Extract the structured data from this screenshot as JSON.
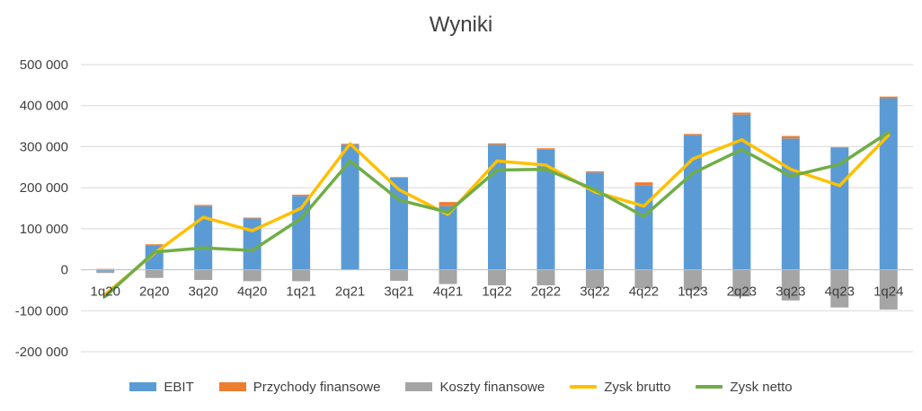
{
  "chart_data": {
    "type": "bar",
    "title": "Wyniki",
    "categories": [
      "1q20",
      "2q20",
      "3q20",
      "4q20",
      "1q21",
      "2q21",
      "3q21",
      "4q21",
      "1q22",
      "2q22",
      "3q22",
      "4q22",
      "1q23",
      "2q23",
      "3q23",
      "4q23",
      "1q24"
    ],
    "ylim": [
      -200000,
      500000
    ],
    "yticks": [
      -200000,
      -100000,
      0,
      100000,
      200000,
      300000,
      400000,
      500000
    ],
    "ytick_labels": [
      "-200 000",
      "-100 000",
      "0",
      "100 000",
      "200 000",
      "300 000",
      "400 000",
      "500 000"
    ],
    "grid": true,
    "legend_position": "bottom",
    "series": [
      {
        "name": "EBIT",
        "kind": "bar",
        "color": "#5B9BD5",
        "values": [
          -3000,
          60000,
          155000,
          125000,
          180000,
          305000,
          225000,
          155000,
          305000,
          293000,
          237000,
          205000,
          328000,
          378000,
          320000,
          297000,
          418000
        ]
      },
      {
        "name": "Przychody finansowe",
        "kind": "bar",
        "color": "#ED7D31",
        "values": [
          2000,
          2000,
          3000,
          2000,
          3000,
          2000,
          1000,
          10000,
          3000,
          3000,
          3000,
          8000,
          3000,
          5000,
          6000,
          2000,
          4000
        ]
      },
      {
        "name": "Koszty finansowe",
        "kind": "bar",
        "color": "#A5A5A5",
        "values": [
          -5000,
          -20000,
          -25000,
          -28000,
          -28000,
          0,
          -27000,
          -35000,
          -38000,
          -38000,
          -45000,
          -45000,
          -50000,
          -65000,
          -75000,
          -92000,
          -97000
        ]
      },
      {
        "name": "Zysk brutto",
        "kind": "line",
        "color": "#FFC000",
        "values": [
          -60000,
          40000,
          128000,
          95000,
          150000,
          307000,
          195000,
          135000,
          265000,
          255000,
          190000,
          155000,
          270000,
          317000,
          245000,
          205000,
          328000
        ]
      },
      {
        "name": "Zysk netto",
        "kind": "line",
        "color": "#70AD47",
        "values": [
          -65000,
          43000,
          53000,
          47000,
          125000,
          265000,
          170000,
          140000,
          243000,
          245000,
          195000,
          130000,
          235000,
          293000,
          228000,
          257000,
          335000
        ]
      }
    ]
  }
}
